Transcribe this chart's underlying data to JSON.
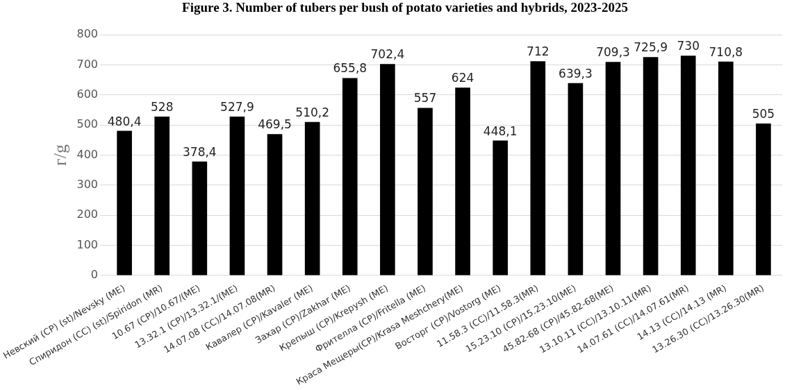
{
  "chart_data": {
    "type": "bar",
    "title": "Figure 3. Number of tubers per bush of potato varieties and hybrids, 2023-2025",
    "ylabel": "г/g",
    "categories": [
      "Невский (CP) (st)/Nevsky (ME)",
      "Спиридон (CC) (st)/Spiridon (MR)",
      "10.67 (CP)/10.67/(ME)",
      "13.32.1 (CP)/13.32.1/(ME)",
      "14.07.08 (CC)/14.07.08(MR)",
      "Кавалер (CP)/Kavaler (ME)",
      "Захар (CP)/Zakhar (ME)",
      "Крепыш (CP)/Krepysh (ME)",
      "Фрителла (CP)/Fritella (ME)",
      "Краса Мещеры(CP)/Krasa Meshchery(ME)",
      "Восторг (CP)/Vostorg (ME)",
      "11.58.3 (CC)/11.58.3(MR)",
      "15.23.10 (CP)/15.23.10(ME)",
      "45.82-68 (CP)/45.82-68(ME)",
      "13.10.11 (CC)/13.10.11(MR)",
      "14.07.61 (CC)/14.07.61(MR)",
      "14.13 (CC)/14.13 (MR)",
      "13.26.30 (CC)/13.26.30(MR)"
    ],
    "values": [
      480.4,
      528,
      378.4,
      527.9,
      469.5,
      510.2,
      655.8,
      702.4,
      557,
      624,
      448.1,
      712,
      639.3,
      709.3,
      725.9,
      730,
      710.8,
      505
    ],
    "value_labels": [
      "480,4",
      "528",
      "378,4",
      "527,9",
      "469,5",
      "510,2",
      "655,8",
      "702,4",
      "557",
      "624",
      "448,1",
      "712",
      "639,3",
      "709,3",
      "725,9",
      "730",
      "710,8",
      "505"
    ],
    "color": "#000000",
    "ylim": [
      0,
      800
    ],
    "yticks": [
      0,
      100,
      200,
      300,
      400,
      500,
      600,
      700,
      800
    ],
    "grid": "y"
  }
}
